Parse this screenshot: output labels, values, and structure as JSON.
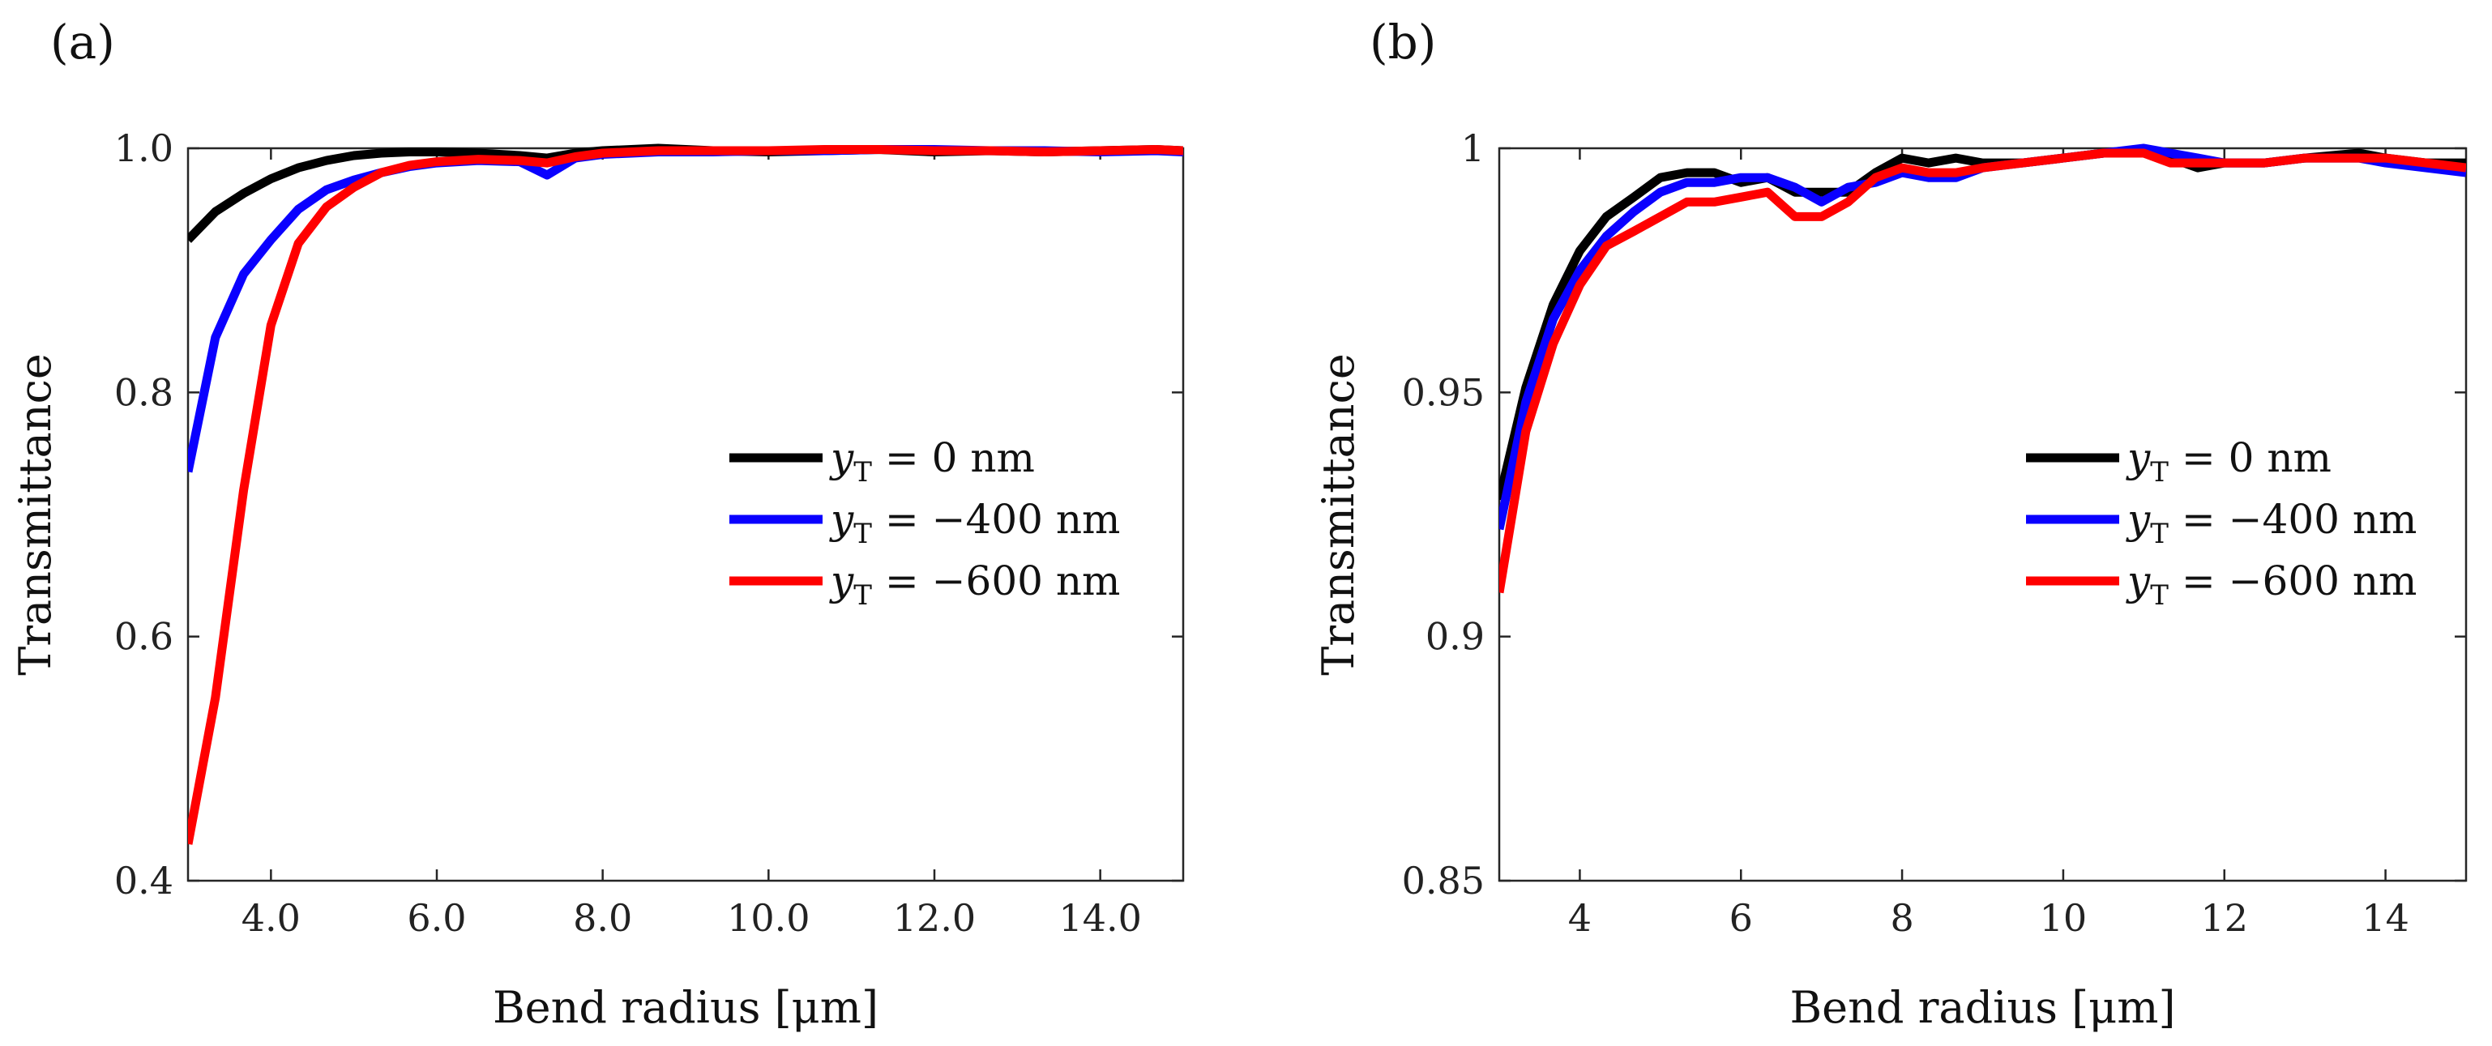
{
  "chart_data": [
    {
      "panel_label": "(a)",
      "type": "line",
      "xlabel": "Bend radius [μm]",
      "ylabel": "Transmittance",
      "xlim": [
        3,
        15
      ],
      "ylim": [
        0.4,
        1.0
      ],
      "xticks": [
        4,
        6,
        8,
        10,
        12,
        14
      ],
      "xtick_labels": [
        "4.0",
        "6.0",
        "8.0",
        "10.0",
        "12.0",
        "14.0"
      ],
      "yticks": [
        0.4,
        0.6,
        0.8,
        1.0
      ],
      "ytick_labels": [
        "0.4",
        "0.6",
        "0.8",
        "1.0"
      ],
      "grid": false,
      "legend_position": "center-right",
      "series": [
        {
          "name": "y_T = 0 nm",
          "legend_var": "y",
          "legend_sub": "T",
          "legend_rest": " = 0 nm",
          "color": "#000000",
          "x": [
            3.0,
            3.33,
            3.67,
            4.0,
            4.33,
            4.67,
            5.0,
            5.33,
            5.67,
            6.0,
            6.5,
            7.0,
            7.33,
            7.67,
            8.0,
            8.67,
            9.33,
            10.0,
            10.67,
            11.33,
            12.0,
            12.67,
            13.33,
            14.0,
            14.67,
            15.0
          ],
          "y": [
            0.925,
            0.948,
            0.963,
            0.975,
            0.984,
            0.99,
            0.994,
            0.996,
            0.997,
            0.997,
            0.996,
            0.994,
            0.992,
            0.996,
            0.998,
            1.0,
            0.998,
            0.997,
            0.998,
            0.999,
            0.997,
            0.998,
            0.997,
            0.998,
            0.999,
            0.998
          ]
        },
        {
          "name": "y_T = -400 nm",
          "legend_var": "y",
          "legend_sub": "T",
          "legend_rest": " = −400 nm",
          "color": "#0a00ff",
          "x": [
            3.0,
            3.33,
            3.67,
            4.0,
            4.33,
            4.67,
            5.0,
            5.33,
            5.67,
            6.0,
            6.5,
            7.0,
            7.33,
            7.67,
            8.0,
            8.67,
            9.33,
            10.0,
            10.67,
            11.33,
            12.0,
            12.67,
            13.33,
            14.0,
            14.67,
            15.0
          ],
          "y": [
            0.735,
            0.845,
            0.897,
            0.925,
            0.95,
            0.966,
            0.974,
            0.98,
            0.985,
            0.988,
            0.99,
            0.989,
            0.978,
            0.992,
            0.995,
            0.997,
            0.997,
            0.998,
            0.998,
            0.999,
            0.999,
            0.998,
            0.998,
            0.997,
            0.998,
            0.997
          ]
        },
        {
          "name": "y_T = -600 nm",
          "legend_var": "y",
          "legend_sub": "T",
          "legend_rest": " = −600 nm",
          "color": "#ff0000",
          "x": [
            3.0,
            3.33,
            3.67,
            4.0,
            4.33,
            4.67,
            5.0,
            5.33,
            5.67,
            6.0,
            6.5,
            7.0,
            7.33,
            7.67,
            8.0,
            8.67,
            9.33,
            10.0,
            10.67,
            11.33,
            12.0,
            12.67,
            13.33,
            14.0,
            14.67,
            15.0
          ],
          "y": [
            0.43,
            0.55,
            0.72,
            0.855,
            0.922,
            0.952,
            0.968,
            0.98,
            0.986,
            0.989,
            0.991,
            0.99,
            0.988,
            0.993,
            0.996,
            0.998,
            0.998,
            0.998,
            0.999,
            0.999,
            0.998,
            0.998,
            0.997,
            0.998,
            0.999,
            0.998
          ]
        }
      ]
    },
    {
      "panel_label": "(b)",
      "type": "line",
      "xlabel": "Bend radius [μm]",
      "ylabel": "Transmittance",
      "xlim": [
        3,
        15
      ],
      "ylim": [
        0.85,
        1.0
      ],
      "xticks": [
        4,
        6,
        8,
        10,
        12,
        14
      ],
      "xtick_labels": [
        "4",
        "6",
        "8",
        "10",
        "12",
        "14"
      ],
      "yticks": [
        0.85,
        0.9,
        0.95,
        1.0
      ],
      "ytick_labels": [
        "0.85",
        "0.9",
        "0.95",
        "1"
      ],
      "grid": false,
      "legend_position": "center-right",
      "series": [
        {
          "name": "y_T = 0 nm",
          "legend_var": "y",
          "legend_sub": "T",
          "legend_rest": " = 0 nm",
          "color": "#000000",
          "x": [
            3.0,
            3.33,
            3.67,
            4.0,
            4.33,
            4.67,
            5.0,
            5.33,
            5.67,
            6.0,
            6.33,
            6.67,
            7.0,
            7.33,
            7.67,
            8.0,
            8.33,
            8.67,
            9.0,
            9.5,
            10.0,
            10.5,
            11.0,
            11.33,
            11.67,
            12.0,
            12.5,
            13.0,
            13.67,
            14.0,
            14.5,
            15.0
          ],
          "y": [
            0.928,
            0.951,
            0.968,
            0.979,
            0.986,
            0.99,
            0.994,
            0.995,
            0.995,
            0.993,
            0.994,
            0.991,
            0.991,
            0.991,
            0.995,
            0.998,
            0.997,
            0.998,
            0.997,
            0.997,
            0.998,
            0.999,
            0.999,
            0.998,
            0.996,
            0.997,
            0.997,
            0.998,
            0.999,
            0.998,
            0.997,
            0.997
          ]
        },
        {
          "name": "y_T = -400 nm",
          "legend_var": "y",
          "legend_sub": "T",
          "legend_rest": " = −400 nm",
          "color": "#0a00ff",
          "x": [
            3.0,
            3.33,
            3.67,
            4.0,
            4.33,
            4.67,
            5.0,
            5.33,
            5.67,
            6.0,
            6.33,
            6.67,
            7.0,
            7.33,
            7.67,
            8.0,
            8.33,
            8.67,
            9.0,
            9.5,
            10.0,
            10.5,
            11.0,
            11.33,
            11.67,
            12.0,
            12.5,
            13.0,
            13.67,
            14.0,
            14.5,
            15.0
          ],
          "y": [
            0.922,
            0.948,
            0.965,
            0.975,
            0.982,
            0.987,
            0.991,
            0.993,
            0.993,
            0.994,
            0.994,
            0.992,
            0.989,
            0.992,
            0.993,
            0.995,
            0.994,
            0.994,
            0.996,
            0.997,
            0.998,
            0.999,
            1.0,
            0.999,
            0.998,
            0.997,
            0.997,
            0.998,
            0.998,
            0.997,
            0.996,
            0.995
          ]
        },
        {
          "name": "y_T = -600 nm",
          "legend_var": "y",
          "legend_sub": "T",
          "legend_rest": " = −600 nm",
          "color": "#ff0000",
          "x": [
            3.0,
            3.33,
            3.67,
            4.0,
            4.33,
            4.67,
            5.0,
            5.33,
            5.67,
            6.0,
            6.33,
            6.67,
            7.0,
            7.33,
            7.67,
            8.0,
            8.33,
            8.67,
            9.0,
            9.5,
            10.0,
            10.5,
            11.0,
            11.33,
            11.67,
            12.0,
            12.5,
            13.0,
            13.67,
            14.0,
            14.5,
            15.0
          ],
          "y": [
            0.909,
            0.942,
            0.96,
            0.972,
            0.98,
            0.983,
            0.986,
            0.989,
            0.989,
            0.99,
            0.991,
            0.986,
            0.986,
            0.989,
            0.994,
            0.996,
            0.995,
            0.995,
            0.996,
            0.997,
            0.998,
            0.999,
            0.999,
            0.997,
            0.997,
            0.997,
            0.997,
            0.998,
            0.998,
            0.998,
            0.997,
            0.996
          ]
        }
      ]
    }
  ]
}
